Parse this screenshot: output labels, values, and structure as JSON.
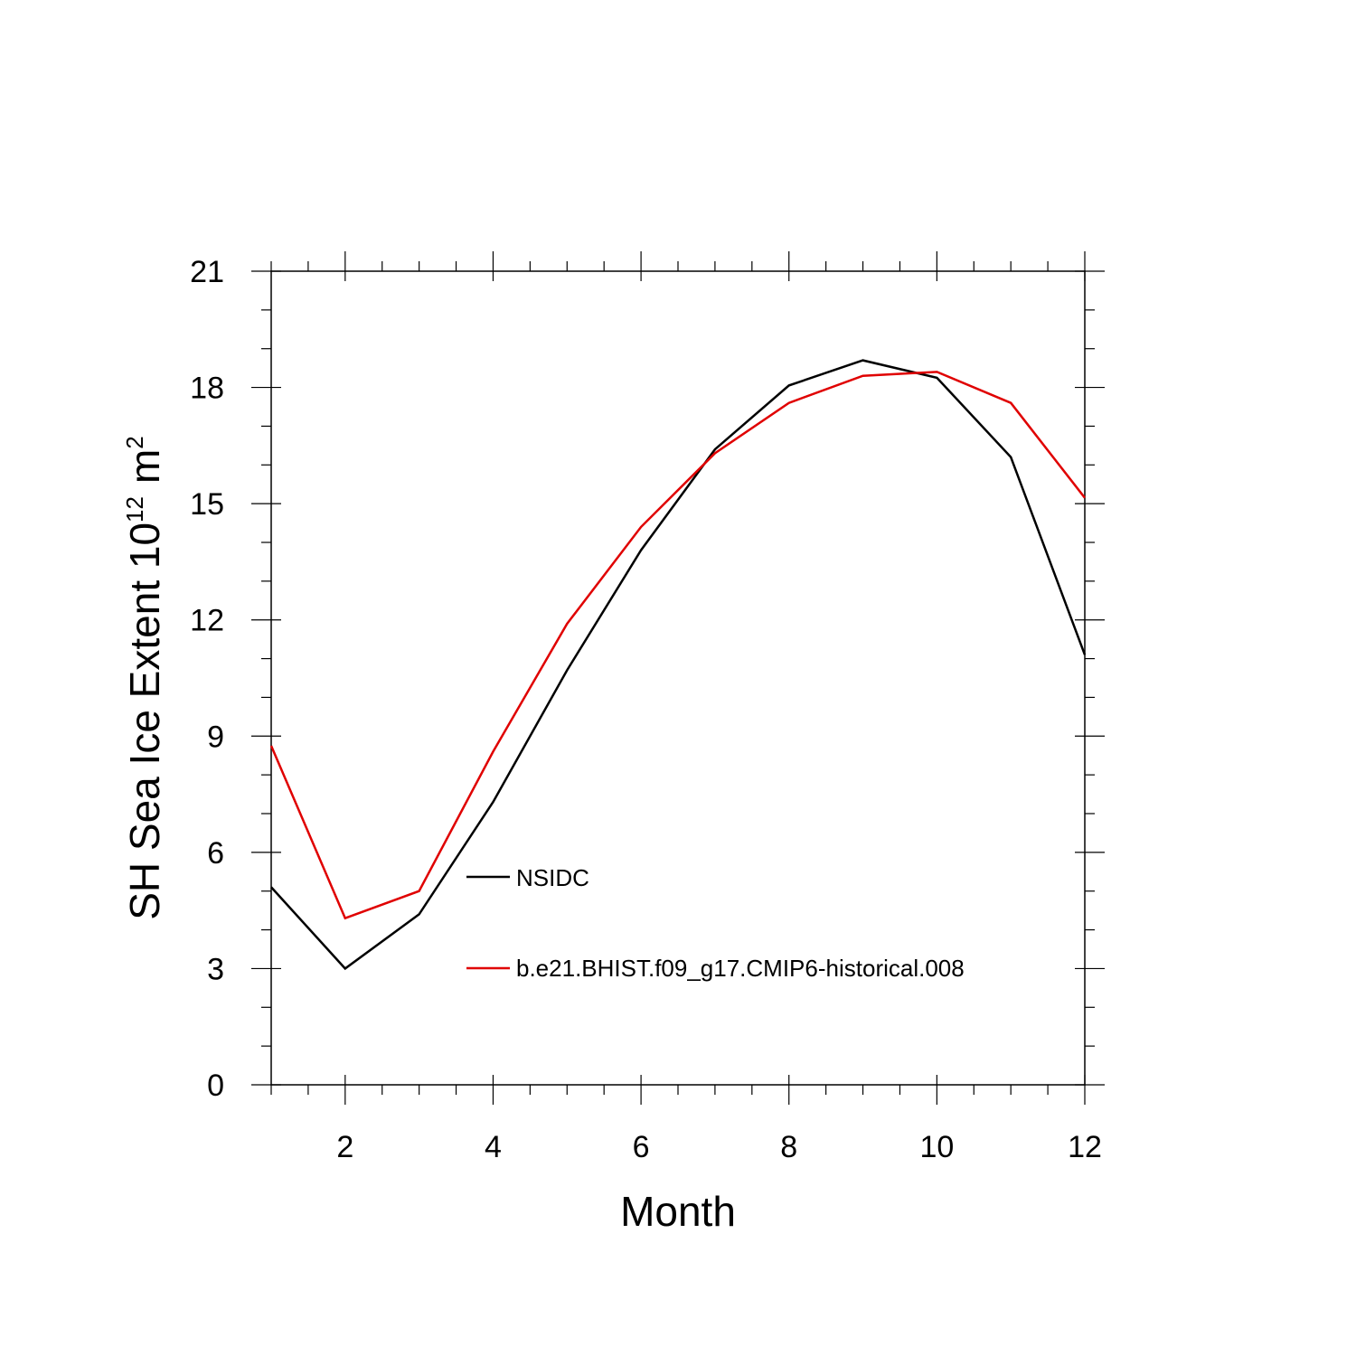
{
  "chart_data": {
    "type": "line",
    "xlabel": "Month",
    "ylabel": {
      "main": "SH Sea Ice Extent 10",
      "exponent": "12",
      "unit": "m",
      "unit_exponent": "2"
    },
    "xlim": [
      1,
      12
    ],
    "ylim": [
      0,
      21
    ],
    "x_ticks": [
      2,
      4,
      6,
      8,
      10,
      12
    ],
    "y_ticks": [
      0,
      3,
      6,
      9,
      12,
      15,
      18,
      21
    ],
    "x": [
      1,
      2,
      3,
      4,
      5,
      6,
      7,
      8,
      9,
      10,
      11,
      12
    ],
    "grid": false,
    "legend_placement": "center",
    "series": [
      {
        "name": "NSIDC",
        "color": "#000000",
        "values": [
          5.1,
          3.0,
          4.4,
          7.3,
          10.7,
          13.8,
          16.4,
          18.05,
          18.7,
          18.25,
          16.2,
          11.1
        ]
      },
      {
        "name": "b.e21.BHIST.f09_g17.CMIP6-historical.008",
        "color": "#e00000",
        "values": [
          8.75,
          4.3,
          5.0,
          8.6,
          11.9,
          14.4,
          16.3,
          17.6,
          18.3,
          18.4,
          17.6,
          15.15
        ]
      }
    ]
  }
}
